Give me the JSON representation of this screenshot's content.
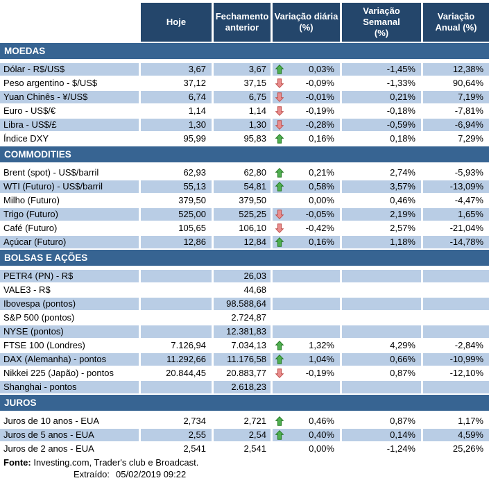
{
  "header": {
    "columns": [
      {
        "line1": "Hoje",
        "line2": ""
      },
      {
        "line1": "Fechamento",
        "line2": "anterior"
      },
      {
        "line1": "Variação diária",
        "line2": "(%)"
      },
      {
        "line1": "Variação Semanal",
        "line2": "(%)"
      },
      {
        "line1": "Variação",
        "line2": "Anual (%)"
      }
    ]
  },
  "sections": [
    {
      "title": "MOEDAS",
      "rows": [
        {
          "label": "Dólar - R$/US$",
          "today": "3,67",
          "previous": "3,67",
          "arrow": "up",
          "daily": "0,03%",
          "weekly": "-1,45%",
          "annual": "12,38%",
          "shade": true
        },
        {
          "label": "Peso argentino - $/US$",
          "today": "37,12",
          "previous": "37,15",
          "arrow": "down",
          "daily": "-0,09%",
          "weekly": "-1,33%",
          "annual": "90,64%",
          "shade": false
        },
        {
          "label": "Yuan Chinês - ¥/US$",
          "today": "6,74",
          "previous": "6,75",
          "arrow": "down",
          "daily": "-0,01%",
          "weekly": "0,21%",
          "annual": "7,19%",
          "shade": true
        },
        {
          "label": "Euro - US$/€",
          "today": "1,14",
          "previous": "1,14",
          "arrow": "down",
          "daily": "-0,19%",
          "weekly": "-0,18%",
          "annual": "-7,81%",
          "shade": false
        },
        {
          "label": "Libra - US$/£",
          "today": "1,30",
          "previous": "1,30",
          "arrow": "down",
          "daily": "-0,28%",
          "weekly": "-0,59%",
          "annual": "-6,94%",
          "shade": true
        },
        {
          "label": "Índice DXY",
          "today": "95,99",
          "previous": "95,83",
          "arrow": "up",
          "daily": "0,16%",
          "weekly": "0,18%",
          "annual": "7,29%",
          "shade": false
        }
      ]
    },
    {
      "title": "COMMODITIES",
      "rows": [
        {
          "label": "Brent (spot) - US$/barril",
          "today": "62,93",
          "previous": "62,80",
          "arrow": "up",
          "daily": "0,21%",
          "weekly": "2,74%",
          "annual": "-5,93%",
          "shade": false
        },
        {
          "label": "WTI (Futuro) - US$/barril",
          "today": "55,13",
          "previous": "54,81",
          "arrow": "up",
          "daily": "0,58%",
          "weekly": "3,57%",
          "annual": "-13,09%",
          "shade": true
        },
        {
          "label": "Milho (Futuro)",
          "today": "379,50",
          "previous": "379,50",
          "arrow": "none",
          "daily": "0,00%",
          "weekly": "0,46%",
          "annual": "-4,47%",
          "shade": false
        },
        {
          "label": "Trigo (Futuro)",
          "today": "525,00",
          "previous": "525,25",
          "arrow": "down",
          "daily": "-0,05%",
          "weekly": "2,19%",
          "annual": "1,65%",
          "shade": true
        },
        {
          "label": "Café (Futuro)",
          "today": "105,65",
          "previous": "106,10",
          "arrow": "down",
          "daily": "-0,42%",
          "weekly": "2,57%",
          "annual": "-21,04%",
          "shade": false
        },
        {
          "label": "Açúcar (Futuro)",
          "today": "12,86",
          "previous": "12,84",
          "arrow": "up",
          "daily": "0,16%",
          "weekly": "1,18%",
          "annual": "-14,78%",
          "shade": true
        }
      ]
    },
    {
      "title": "BOLSAS E AÇÕES",
      "rows": [
        {
          "label": "PETR4 (PN) - R$",
          "today": "",
          "previous": "26,03",
          "arrow": "none",
          "daily": "",
          "weekly": "",
          "annual": "",
          "shade": true
        },
        {
          "label": "VALE3 - R$",
          "today": "",
          "previous": "44,68",
          "arrow": "none",
          "daily": "",
          "weekly": "",
          "annual": "",
          "shade": false
        },
        {
          "label": "Ibovespa (pontos)",
          "today": "",
          "previous": "98.588,64",
          "arrow": "none",
          "daily": "",
          "weekly": "",
          "annual": "",
          "shade": true
        },
        {
          "label": "S&P 500 (pontos)",
          "today": "",
          "previous": "2.724,87",
          "arrow": "none",
          "daily": "",
          "weekly": "",
          "annual": "",
          "shade": false
        },
        {
          "label": "NYSE (pontos)",
          "today": "",
          "previous": "12.381,83",
          "arrow": "none",
          "daily": "",
          "weekly": "",
          "annual": "",
          "shade": true
        },
        {
          "label": "FTSE 100 (Londres)",
          "today": "7.126,94",
          "previous": "7.034,13",
          "arrow": "up",
          "daily": "1,32%",
          "weekly": "4,29%",
          "annual": "-2,84%",
          "shade": false
        },
        {
          "label": "DAX (Alemanha) - pontos",
          "today": "11.292,66",
          "previous": "11.176,58",
          "arrow": "up",
          "daily": "1,04%",
          "weekly": "0,66%",
          "annual": "-10,99%",
          "shade": true
        },
        {
          "label": "Nikkei 225 (Japão) - pontos",
          "today": "20.844,45",
          "previous": "20.883,77",
          "arrow": "down",
          "daily": "-0,19%",
          "weekly": "0,87%",
          "annual": "-12,10%",
          "shade": false
        },
        {
          "label": "Shanghai - pontos",
          "today": "",
          "previous": "2.618,23",
          "arrow": "none",
          "daily": "",
          "weekly": "",
          "annual": "",
          "shade": true
        }
      ]
    },
    {
      "title": "JUROS",
      "rows": [
        {
          "label": "Juros de 10 anos - EUA",
          "today": "2,734",
          "previous": "2,721",
          "arrow": "up",
          "daily": "0,46%",
          "weekly": "0,87%",
          "annual": "1,17%",
          "shade": false
        },
        {
          "label": "Juros de 5 anos - EUA",
          "today": "2,55",
          "previous": "2,54",
          "arrow": "up",
          "daily": "0,40%",
          "weekly": "0,14%",
          "annual": "4,59%",
          "shade": true
        },
        {
          "label": "Juros de 2 anos - EUA",
          "today": "2,541",
          "previous": "2,541",
          "arrow": "none",
          "daily": "0,00%",
          "weekly": "-1,24%",
          "annual": "25,26%",
          "shade": false
        }
      ]
    }
  ],
  "footer": {
    "source_label": "Fonte:",
    "source_text": "Investing.com, Trader's club e Broadcast.",
    "extracted_label": "Extraído:",
    "extracted_value": "05/02/2019 09:22"
  },
  "colors": {
    "header_bg": "#24466B",
    "section_bg": "#376492",
    "row_shade": "#B9CDE5",
    "up_arrow_fill": "#4FAE4F",
    "up_arrow_border": "#247A24",
    "down_arrow_fill": "#E98C8C",
    "down_arrow_border": "#C0504D"
  }
}
